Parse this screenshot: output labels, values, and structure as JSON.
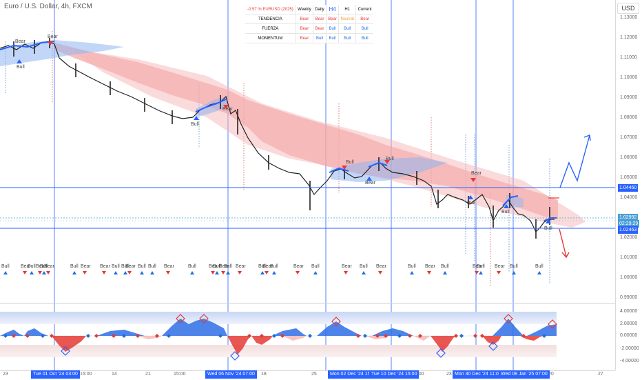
{
  "chart": {
    "symbol_title": "Euro / U.S. Dollar, 4h, FXCM",
    "currency_label": "USD",
    "price_ticks": [
      "1.13000",
      "1.12000",
      "1.11000",
      "1.10000",
      "1.09000",
      "1.08000",
      "1.07000",
      "1.06000",
      "1.05000",
      "1.04000",
      "1.03000",
      "1.02000",
      "1.01000",
      "1.00000",
      "0.99000"
    ],
    "price_labels": {
      "resistance": "1.04460",
      "last_price": "1.02992",
      "countdown": "02:29:29",
      "support": "1.02463"
    },
    "osc_ticks": [
      "4.00000",
      "2.00000",
      "0.00000",
      "-2.00000",
      "-4.00000"
    ],
    "time_ticks": [
      "23",
      "15:00",
      "14",
      "21",
      "15:00",
      "18",
      "25",
      "15:00",
      "23",
      "20",
      "27"
    ],
    "time_badges": [
      "Tue 01 Oct '24 03:00",
      "Wed 06 Nov '24 07:00",
      "Mon 02 Dec '24 15:0",
      "Tue 10 Dec '24 15:00",
      "Mon 30 Dec '24 11:00",
      "Wed 08 Jan '25 07:00"
    ]
  },
  "summary_table": {
    "header": [
      "-0.57 % EURUSD (2025)",
      "Weekly",
      "Daily",
      "H4",
      "H1",
      "Current"
    ],
    "rows": [
      {
        "label": "TENDENCIA",
        "cells": [
          "Bear",
          "Bear",
          "Bear",
          "Neutral",
          "Bear"
        ]
      },
      {
        "label": "FUERZA",
        "cells": [
          "Bear",
          "Bear",
          "Bull",
          "Bull",
          "Bull"
        ]
      },
      {
        "label": "MOMENTUM",
        "cells": [
          "Bear",
          "Bull",
          "Bull",
          "Bull",
          "Bull"
        ]
      }
    ]
  },
  "signals": {
    "price_labels": [
      "Bear",
      "Bull",
      "Bear",
      "Bull",
      "Bear",
      "Bull",
      "Bear",
      "Bull",
      "Bear",
      "Bull",
      "Bull",
      "Bull"
    ],
    "row_labels": [
      "Bull",
      "Bear",
      "Bull",
      "Bear",
      "Bull",
      "Bear",
      "Bull",
      "Bear",
      "Bear",
      "Bull",
      "Bull",
      "Bear",
      "Bull",
      "Bull",
      "Bear",
      "Bull",
      "Bear",
      "Bull",
      "Bear",
      "Bull",
      "Bear",
      "Bull",
      "Bear",
      "Bull",
      "Bear",
      "Bull",
      "Bear",
      "Bull",
      "Bear",
      "Bull",
      "Bear",
      "Bull",
      "Bear",
      "Bull",
      "Bear",
      "Bull",
      "Bull"
    ]
  },
  "colors": {
    "bear": "#e53935",
    "bull": "#1e6fe0",
    "neutral": "#f0a030",
    "accent": "#2962ff",
    "cloud_bear": "#f28b8b",
    "cloud_bull": "#8fb5f0"
  }
}
